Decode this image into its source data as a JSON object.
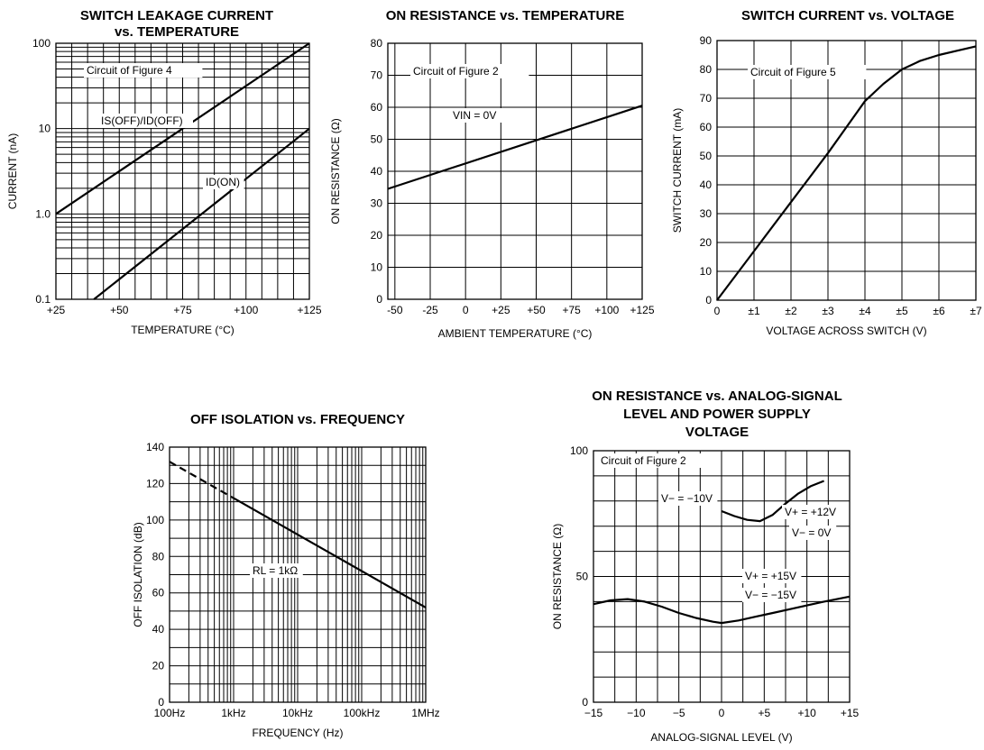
{
  "chart_data": [
    {
      "type": "line",
      "title_lines": [
        "SWITCH LEAKAGE CURRENT",
        "vs. TEMPERATURE"
      ],
      "xlabel": "TEMPERATURE (°C)",
      "ylabel": "CURRENT (nA)",
      "xscale": "linear",
      "yscale": "log",
      "xlim": [
        25,
        125
      ],
      "ylim": [
        0.1,
        100
      ],
      "xticks": [
        "+25",
        "+50",
        "+75",
        "+100",
        "+125"
      ],
      "yticks": [
        "0.1",
        "1.0",
        "10",
        "100"
      ],
      "grid": true,
      "annotations": [
        "Circuit of Figure 4",
        "IS(OFF)/ID(OFF)",
        "ID(ON)"
      ],
      "series": [
        {
          "name": "IS(OFF)/ID(OFF)",
          "x": [
            25,
            125
          ],
          "y": [
            1.0,
            100
          ]
        },
        {
          "name": "ID(ON)",
          "x": [
            40,
            125
          ],
          "y": [
            0.1,
            10
          ]
        }
      ]
    },
    {
      "type": "line",
      "title_lines": [
        "ON RESISTANCE vs. TEMPERATURE"
      ],
      "xlabel": "AMBIENT TEMPERATURE (°C)",
      "ylabel": "ON RESISTANCE (Ω)",
      "xscale": "linear",
      "yscale": "linear",
      "xlim": [
        -55,
        125
      ],
      "ylim": [
        0,
        80
      ],
      "xticks": [
        "-50",
        "-25",
        "0",
        "+25",
        "+50",
        "+75",
        "+100",
        "+125"
      ],
      "yticks": [
        "0",
        "10",
        "20",
        "30",
        "40",
        "50",
        "60",
        "70",
        "80"
      ],
      "grid": true,
      "annotations": [
        "Circuit of Figure 2",
        "VIN = 0V"
      ],
      "series": [
        {
          "x": [
            -55,
            125
          ],
          "y": [
            34.5,
            60.5
          ]
        }
      ]
    },
    {
      "type": "line",
      "title_lines": [
        "SWITCH CURRENT vs. VOLTAGE"
      ],
      "xlabel": "VOLTAGE ACROSS SWITCH (V)",
      "ylabel": "SWITCH CURRENT (mA)",
      "xscale": "linear",
      "yscale": "linear",
      "xlim": [
        0,
        7
      ],
      "ylim": [
        0,
        90
      ],
      "xticks": [
        "0",
        "±1",
        "±2",
        "±3",
        "±4",
        "±5",
        "±6",
        "±7"
      ],
      "yticks": [
        "0",
        "10",
        "20",
        "30",
        "40",
        "50",
        "60",
        "70",
        "80",
        "90"
      ],
      "grid": true,
      "annotations": [
        "Circuit of Figure 5"
      ],
      "series": [
        {
          "x": [
            0,
            1,
            2,
            3,
            3.5,
            4,
            4.5,
            5,
            5.5,
            6,
            6.5,
            7
          ],
          "y": [
            0,
            17,
            34,
            51,
            60,
            69,
            75,
            80,
            83,
            85,
            86.5,
            88
          ]
        }
      ]
    },
    {
      "type": "line",
      "title_lines": [
        "OFF ISOLATION vs. FREQUENCY"
      ],
      "xlabel": "FREQUENCY (Hz)",
      "ylabel": "OFF ISOLATION (dB)",
      "xscale": "log",
      "yscale": "linear",
      "xlim": [
        100,
        1000000
      ],
      "ylim": [
        0,
        140
      ],
      "xticks": [
        "100Hz",
        "1kHz",
        "10kHz",
        "100kHz",
        "1MHz"
      ],
      "yticks": [
        "0",
        "20",
        "40",
        "60",
        "80",
        "100",
        "120",
        "140"
      ],
      "grid": true,
      "annotations": [
        "RL = 1kΩ"
      ],
      "series": [
        {
          "x": [
            100,
            1000
          ],
          "y": [
            132,
            112
          ],
          "dashed": true
        },
        {
          "x": [
            1000,
            1000000
          ],
          "y": [
            112,
            52
          ]
        }
      ]
    },
    {
      "type": "line",
      "title_lines": [
        "ON RESISTANCE vs. ANALOG-SIGNAL",
        "LEVEL AND POWER SUPPLY",
        "VOLTAGE"
      ],
      "xlabel": "ANALOG-SIGNAL LEVEL (V)",
      "ylabel": "ON RESISTANCE (Ω)",
      "xscale": "linear",
      "yscale": "linear",
      "xlim": [
        -15,
        15
      ],
      "ylim": [
        0,
        100
      ],
      "xticks": [
        "−15",
        "−10",
        "−5",
        "0",
        "+5",
        "+10",
        "+15"
      ],
      "yticks": [
        "0",
        "50",
        "100"
      ],
      "grid": true,
      "annotations": [
        "Circuit of Figure 2",
        "V− = −10V",
        "V+ = +12V",
        "V− = 0V",
        "V+ = +15V",
        "V− = −15V"
      ],
      "series": [
        {
          "x": [
            -15,
            -13,
            -11,
            -9,
            -7,
            -5,
            -3,
            -1,
            0,
            2,
            4,
            6,
            8,
            10,
            12,
            15
          ],
          "y": [
            39,
            40.5,
            41,
            40,
            38,
            35.5,
            33.5,
            32,
            31.5,
            32.5,
            34,
            35.5,
            37,
            38.5,
            40,
            42
          ]
        },
        {
          "x": [
            0,
            1.5,
            3,
            4.5,
            6,
            7.5,
            9,
            10.5,
            12
          ],
          "y": [
            76,
            74,
            72.5,
            72,
            74.5,
            79,
            83,
            86,
            88
          ]
        }
      ]
    }
  ]
}
